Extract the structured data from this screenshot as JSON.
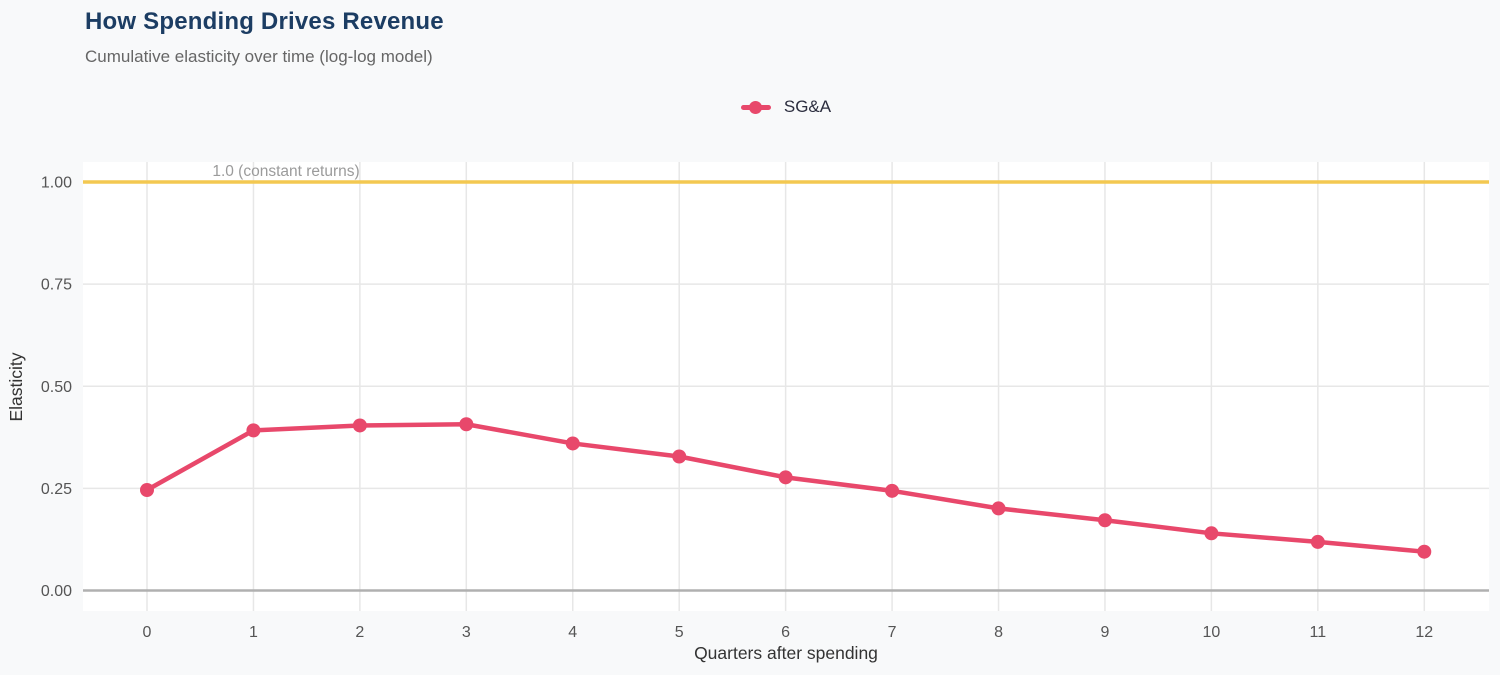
{
  "header": {
    "title": "How Spending Drives Revenue",
    "subtitle": "Cumulative elasticity over time (log-log model)"
  },
  "legend": {
    "series_label": "SG&A"
  },
  "colors": {
    "page_bg": "#f8f9fa",
    "plot_bg": "#ffffff",
    "series": "#e8486b",
    "reference_line": "#f3c851",
    "grid": "#e7e7e7",
    "zero_line": "#b0b0b0",
    "tick_label": "#555555",
    "axis_title": "#333333",
    "annotation": "#9b9b9b",
    "title": "#1c3d63",
    "subtitle": "#666666"
  },
  "chart_data": {
    "type": "line",
    "title": "How Spending Drives Revenue",
    "subtitle": "Cumulative elasticity over time (log-log model)",
    "xlabel": "Quarters after spending",
    "ylabel": "Elasticity",
    "x": [
      0,
      1,
      2,
      3,
      4,
      5,
      6,
      7,
      8,
      9,
      10,
      11,
      12
    ],
    "x_tick_labels": [
      "0",
      "1",
      "2",
      "3",
      "4",
      "5",
      "6",
      "7",
      "8",
      "9",
      "10",
      "11",
      "12"
    ],
    "y_ticks": [
      0.0,
      0.25,
      0.5,
      0.75,
      1.0
    ],
    "y_tick_labels": [
      "0.00",
      "0.25",
      "0.50",
      "0.75",
      "1.00"
    ],
    "xlim": [
      -0.6,
      12.6
    ],
    "ylim": [
      -0.05,
      1.05
    ],
    "grid": true,
    "legend_position": "top-center",
    "series": [
      {
        "name": "SG&A",
        "values": [
          0.246,
          0.392,
          0.404,
          0.407,
          0.36,
          0.328,
          0.277,
          0.244,
          0.201,
          0.172,
          0.14,
          0.119,
          0.095
        ]
      }
    ],
    "reference_line": {
      "value": 1.0,
      "label": "1.0 (constant returns)"
    }
  }
}
